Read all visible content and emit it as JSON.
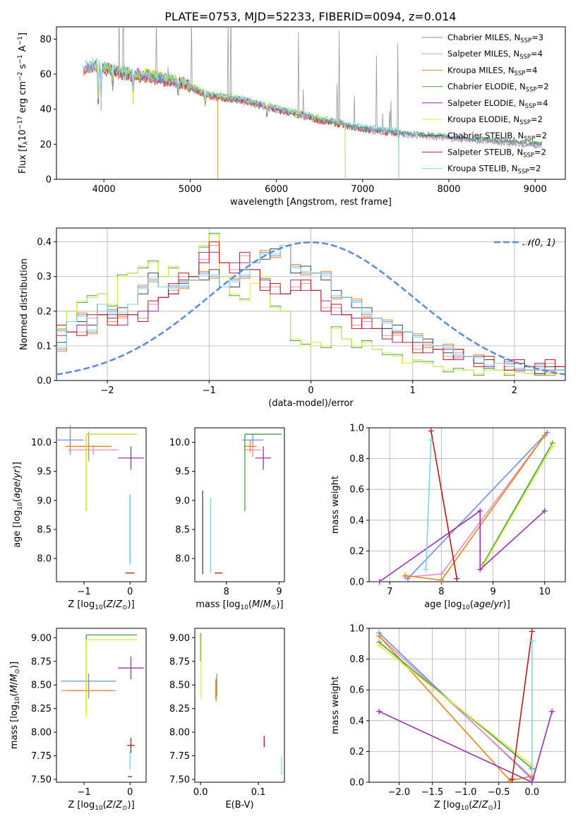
{
  "figure_title": "PLATE=0753, MJD=52233, FIBERID=0094, z=0.014",
  "colors": {
    "Chabrier MILES": "#6b8fe0",
    "Salpeter MILES": "#ee8cb0",
    "Kroupa MILES": "#e0861c",
    "Chabrier ELODIE": "#4c9a4c",
    "Salpeter ELODIE": "#9a2fb0",
    "Kroupa ELODIE": "#d4f03a",
    "Chabrier STELIB": "#444444",
    "Salpeter STELIB": "#c01818",
    "Kroupa STELIB": "#7fd6e0",
    "gaussian": "#5b8ad8"
  },
  "legend_spectrum": [
    {
      "model": "Chabrier MILES",
      "nssp": "3"
    },
    {
      "model": "Salpeter MILES",
      "nssp": "4"
    },
    {
      "model": "Kroupa MILES",
      "nssp": "4"
    },
    {
      "model": "Chabrier ELODIE",
      "nssp": "2"
    },
    {
      "model": "Salpeter ELODIE",
      "nssp": "4"
    },
    {
      "model": "Kroupa ELODIE",
      "nssp": "2"
    },
    {
      "model": "Chabrier STELIB",
      "nssp": "2"
    },
    {
      "model": "Salpeter STELIB",
      "nssp": "2"
    },
    {
      "model": "Kroupa STELIB",
      "nssp": "2"
    }
  ],
  "chart_data": [
    {
      "id": "spectrum",
      "type": "line",
      "title": "PLATE=0753, MJD=52233, FIBERID=0094, z=0.014",
      "xlabel": "wavelength [Angstrom, rest frame]",
      "ylabel": "Flux [f_λ 10^-17 erg cm^-2 s^-1 A^-1]",
      "xlim": [
        3450,
        9350
      ],
      "ylim": [
        0,
        87
      ],
      "xticks": [
        4000,
        5000,
        6000,
        7000,
        8000,
        9000
      ],
      "yticks": [
        0,
        20,
        40,
        60,
        80
      ],
      "continuum": {
        "x": [
          3750,
          3900,
          4100,
          4300,
          4600,
          4900,
          5200,
          5600,
          6000,
          6500,
          7000,
          7500,
          8000,
          8500,
          9000,
          9080
        ],
        "y": [
          62,
          64,
          61,
          59,
          57,
          54,
          47,
          44,
          39,
          33,
          28,
          25,
          23,
          21,
          19,
          19
        ]
      }
    },
    {
      "id": "residuals",
      "type": "line",
      "xlabel": "(data-model)/error",
      "ylabel": "Normed distribution",
      "xlim": [
        -2.5,
        2.5
      ],
      "ylim": [
        0,
        0.44
      ],
      "xticks": [
        -2,
        -1,
        0,
        1,
        2
      ],
      "yticks": [
        0.0,
        0.1,
        0.2,
        0.3,
        0.4
      ],
      "legend": "𝒩(0, 1)",
      "bin_edges_start": -2.5,
      "bin_width": 0.1,
      "series_shapes": {
        "MILES": [
          0.1,
          0.17,
          0.18,
          0.15,
          0.22,
          0.19,
          0.2,
          0.22,
          0.26,
          0.3,
          0.27,
          0.26,
          0.28,
          0.29,
          0.3,
          0.31,
          0.27,
          0.28,
          0.31,
          0.34,
          0.36,
          0.37,
          0.39,
          0.32,
          0.32,
          0.31,
          0.3,
          0.25,
          0.24,
          0.22,
          0.2,
          0.18,
          0.16,
          0.15,
          0.14,
          0.12,
          0.11,
          0.1,
          0.09,
          0.08,
          0.07,
          0.06,
          0.05,
          0.05,
          0.04,
          0.04,
          0.03,
          0.03,
          0.03,
          0.03
        ],
        "ELODIE": [
          0.14,
          0.2,
          0.23,
          0.24,
          0.25,
          0.22,
          0.3,
          0.31,
          0.33,
          0.34,
          0.3,
          0.33,
          0.28,
          0.29,
          0.39,
          0.42,
          0.3,
          0.25,
          0.23,
          0.28,
          0.3,
          0.21,
          0.2,
          0.12,
          0.1,
          0.11,
          0.1,
          0.15,
          0.12,
          0.1,
          0.11,
          0.09,
          0.08,
          0.07,
          0.05,
          0.06,
          0.05,
          0.04,
          0.03,
          0.03,
          0.03,
          0.02,
          0.03,
          0.03,
          0.02,
          0.03,
          0.02,
          0.02,
          0.02,
          0.02
        ],
        "Salpeter": [
          0.14,
          0.14,
          0.15,
          0.17,
          0.19,
          0.18,
          0.17,
          0.19,
          0.19,
          0.21,
          0.24,
          0.27,
          0.29,
          0.3,
          0.36,
          0.38,
          0.34,
          0.33,
          0.35,
          0.32,
          0.28,
          0.26,
          0.25,
          0.28,
          0.27,
          0.26,
          0.22,
          0.2,
          0.19,
          0.17,
          0.16,
          0.15,
          0.14,
          0.12,
          0.11,
          0.1,
          0.09,
          0.09,
          0.08,
          0.07,
          0.07,
          0.06,
          0.05,
          0.05,
          0.05,
          0.04,
          0.04,
          0.04,
          0.04,
          0.04
        ]
      },
      "gaussian": {
        "mean": 0,
        "sigma": 1
      }
    },
    {
      "id": "age_vs_Z",
      "type": "scatter",
      "xlabel": "Z [log10(Z/Z_sun)]",
      "ylabel": "age [log10(age/yr)]",
      "xlim": [
        -1.6,
        0.35
      ],
      "ylim": [
        7.6,
        10.25
      ],
      "xticks": [
        -1,
        0
      ],
      "yticks": [
        8.0,
        8.5,
        9.0,
        9.5,
        10.0
      ],
      "points": [
        {
          "s": "Chabrier MILES",
          "x": -1.3,
          "y": 10.04,
          "xe": 0.3,
          "ye": 0.25
        },
        {
          "s": "Salpeter MILES",
          "x": -0.8,
          "y": 9.87,
          "xe": 0.55,
          "ye": 0.08
        },
        {
          "s": "Kroupa MILES",
          "x": -0.9,
          "y": 9.93,
          "xe": 0.5,
          "ye": 0.25
        },
        {
          "s": "Chabrier ELODIE",
          "x": -0.4,
          "y": 10.14,
          "xe": 0.55,
          "ye": 0.0
        },
        {
          "s": "Kroupa ELODIE",
          "x": -0.4,
          "y": 10.14,
          "xe": 0.55,
          "ye": 0.0
        },
        {
          "s": "Salpeter ELODIE",
          "x": 0.02,
          "y": 9.73,
          "xe": 0.28,
          "ye": 0.2
        },
        {
          "s": "Salpeter STELIB",
          "x": 0.0,
          "y": 7.75,
          "xe": 0.1,
          "ye": 0.0
        },
        {
          "s": "Chabrier STELIB",
          "x": 0.0,
          "y": 8.5,
          "xe": 0.0,
          "ye": 0.6
        },
        {
          "s": "Kroupa STELIB",
          "x": 0.0,
          "y": 8.5,
          "xe": 0.0,
          "ye": 0.6
        }
      ]
    },
    {
      "id": "age_vs_mass",
      "type": "scatter",
      "xlabel": "mass [log10(M/M_sun)]",
      "ylabel": "",
      "xlim": [
        7.4,
        9.1
      ],
      "ylim": [
        7.6,
        10.25
      ],
      "xticks": [
        8,
        9
      ],
      "yticks": [
        8.0,
        8.5,
        9.0,
        9.5,
        10.0
      ],
      "points": [
        {
          "s": "Chabrier MILES",
          "x": 8.5,
          "y": 10.04,
          "xe": 0.2,
          "ye": 0.1
        },
        {
          "s": "Salpeter MILES",
          "x": 8.5,
          "y": 9.87,
          "xe": 0.15,
          "ye": 0.12
        },
        {
          "s": "Kroupa MILES",
          "x": 8.45,
          "y": 9.93,
          "xe": 0.12,
          "ye": 0.1
        },
        {
          "s": "Chabrier ELODIE",
          "x": 8.7,
          "y": 10.14,
          "xe": 0.35,
          "ye": 0.0
        },
        {
          "s": "Salpeter ELODIE",
          "x": 8.7,
          "y": 9.73,
          "xe": 0.15,
          "ye": 0.2
        },
        {
          "s": "Salpeter STELIB",
          "x": 7.85,
          "y": 7.75,
          "xe": 0.07,
          "ye": 0.0
        },
        {
          "s": "Chabrier STELIB",
          "x": 7.55,
          "y": 8.45,
          "xe": 0.0,
          "ye": 0.72
        },
        {
          "s": "Kroupa STELIB",
          "x": 7.7,
          "y": 8.4,
          "xe": 0.0,
          "ye": 0.65
        }
      ]
    },
    {
      "id": "weight_vs_age",
      "type": "line",
      "xlabel": "age [log10(age/yr)]",
      "ylabel": "mass weight",
      "xlim": [
        6.6,
        10.4
      ],
      "ylim": [
        0,
        1.0
      ],
      "xticks": [
        7,
        8,
        9,
        10
      ],
      "yticks": [
        0.0,
        0.2,
        0.4,
        0.6,
        0.8,
        1.0
      ],
      "series": [
        {
          "s": "Chabrier MILES",
          "x": [
            7.35,
            10.05
          ],
          "y": [
            0.02,
            0.97
          ]
        },
        {
          "s": "Salpeter MILES",
          "x": [
            7.3,
            8.0,
            10.0
          ],
          "y": [
            0.03,
            0.05,
            0.95
          ]
        },
        {
          "s": "Kroupa MILES",
          "x": [
            7.3,
            8.0,
            10.0
          ],
          "y": [
            0.04,
            0.01,
            0.95
          ]
        },
        {
          "s": "Chabrier ELODIE",
          "x": [
            8.8,
            10.15
          ],
          "y": [
            0.11,
            0.9
          ]
        },
        {
          "s": "Kroupa ELODIE",
          "x": [
            8.8,
            10.15
          ],
          "y": [
            0.1,
            0.88
          ]
        },
        {
          "s": "Salpeter ELODIE",
          "x": [
            6.8,
            8.75,
            8.75,
            10.0
          ],
          "y": [
            0.0,
            0.46,
            0.08,
            0.46
          ]
        },
        {
          "s": "Salpeter STELIB",
          "x": [
            7.8,
            8.3
          ],
          "y": [
            0.98,
            0.02
          ]
        },
        {
          "s": "Kroupa STELIB",
          "x": [
            7.7,
            7.8
          ],
          "y": [
            0.08,
            0.92
          ]
        }
      ]
    },
    {
      "id": "mass_vs_Z",
      "type": "scatter",
      "xlabel": "Z [log10(Z/Z_sun)]",
      "ylabel": "mass [log10(M/M_sun)]",
      "xlim": [
        -1.6,
        0.35
      ],
      "ylim": [
        7.47,
        9.1
      ],
      "xticks": [
        -1,
        0
      ],
      "yticks": [
        7.5,
        7.75,
        8.0,
        8.25,
        8.5,
        8.75,
        9.0
      ],
      "points": [
        {
          "s": "Chabrier MILES",
          "x": -0.9,
          "y": 8.54,
          "xe": 0.6,
          "ye": 0.08
        },
        {
          "s": "Salpeter MILES",
          "x": -0.9,
          "y": 8.44,
          "xe": 0.6,
          "ye": 0.08
        },
        {
          "s": "Kroupa MILES",
          "x": -0.9,
          "y": 8.44,
          "xe": 0.5,
          "ye": 0.08
        },
        {
          "s": "Chabrier ELODIE",
          "x": -0.4,
          "y": 9.03,
          "xe": 0.55,
          "ye": 0.0
        },
        {
          "s": "Kroupa ELODIE",
          "x": -0.4,
          "y": 8.98,
          "xe": 0.55,
          "ye": 0.0
        },
        {
          "s": "Salpeter ELODIE",
          "x": 0.02,
          "y": 8.68,
          "xe": 0.28,
          "ye": 0.12
        },
        {
          "s": "Salpeter STELIB",
          "x": 0.02,
          "y": 7.86,
          "xe": 0.08,
          "ye": 0.08
        },
        {
          "s": "Kroupa STELIB",
          "x": 0.0,
          "y": 7.7,
          "xe": 0.0,
          "ye": 0.1
        },
        {
          "s": "Chabrier STELIB",
          "x": 0.0,
          "y": 7.53,
          "xe": 0.0,
          "ye": 0.0
        }
      ]
    },
    {
      "id": "mass_vs_EBV",
      "type": "scatter",
      "xlabel": "E(B-V)",
      "ylabel": "",
      "xlim": [
        -0.01,
        0.145
      ],
      "ylim": [
        7.47,
        9.1
      ],
      "xticks": [
        0.0,
        0.1
      ],
      "yticks": [
        7.5,
        7.75,
        8.0,
        8.25,
        8.5,
        8.75,
        9.0
      ],
      "points": [
        {
          "s": "Chabrier MILES",
          "x": 0.028,
          "y": 8.5,
          "xe": 0.0,
          "ye": 0.12
        },
        {
          "s": "Salpeter MILES",
          "x": 0.026,
          "y": 8.45,
          "xe": 0.0,
          "ye": 0.1
        },
        {
          "s": "Kroupa MILES",
          "x": 0.027,
          "y": 8.45,
          "xe": 0.0,
          "ye": 0.12
        },
        {
          "s": "Chabrier ELODIE",
          "x": 0.0,
          "y": 8.9,
          "xe": 0.0,
          "ye": 0.15
        },
        {
          "s": "Kroupa ELODIE",
          "x": 0.001,
          "y": 8.7,
          "xe": 0.0,
          "ye": 0.35
        },
        {
          "s": "Salpeter STELIB",
          "x": 0.11,
          "y": 7.9,
          "xe": 0.0,
          "ye": 0.06
        },
        {
          "s": "Kroupa STELIB",
          "x": 0.14,
          "y": 7.65,
          "xe": 0.0,
          "ye": 0.1
        }
      ]
    },
    {
      "id": "weight_vs_Z",
      "type": "line",
      "xlabel": "Z [log10(Z/Z_sun)]",
      "ylabel": "mass weight",
      "xlim": [
        -2.45,
        0.5
      ],
      "ylim": [
        0,
        1.0
      ],
      "xticks": [
        -2.0,
        -1.5,
        -1.0,
        -0.5,
        0.0
      ],
      "yticks": [
        0.0,
        0.2,
        0.4,
        0.6,
        0.8,
        1.0
      ],
      "series": [
        {
          "s": "Chabrier MILES",
          "x": [
            -2.3,
            0.0
          ],
          "y": [
            0.97,
            0.02
          ]
        },
        {
          "s": "Salpeter MILES",
          "x": [
            -2.3,
            0.0
          ],
          "y": [
            0.95,
            0.03
          ]
        },
        {
          "s": "Kroupa MILES",
          "x": [
            -2.3,
            -0.33,
            0.0
          ],
          "y": [
            0.95,
            0.01,
            0.04
          ]
        },
        {
          "s": "Chabrier ELODIE",
          "x": [
            -2.3,
            0.0
          ],
          "y": [
            0.91,
            0.09
          ]
        },
        {
          "s": "Kroupa ELODIE",
          "x": [
            -2.3,
            0.0
          ],
          "y": [
            0.89,
            0.11
          ]
        },
        {
          "s": "Salpeter ELODIE",
          "x": [
            -2.3,
            0.0,
            0.3
          ],
          "y": [
            0.46,
            0.0,
            0.46
          ]
        },
        {
          "s": "Salpeter STELIB",
          "x": [
            -0.3,
            0.0
          ],
          "y": [
            0.02,
            0.98
          ]
        },
        {
          "s": "Kroupa STELIB",
          "x": [
            0.0,
            0.0
          ],
          "y": [
            0.08,
            0.92
          ]
        }
      ]
    }
  ]
}
